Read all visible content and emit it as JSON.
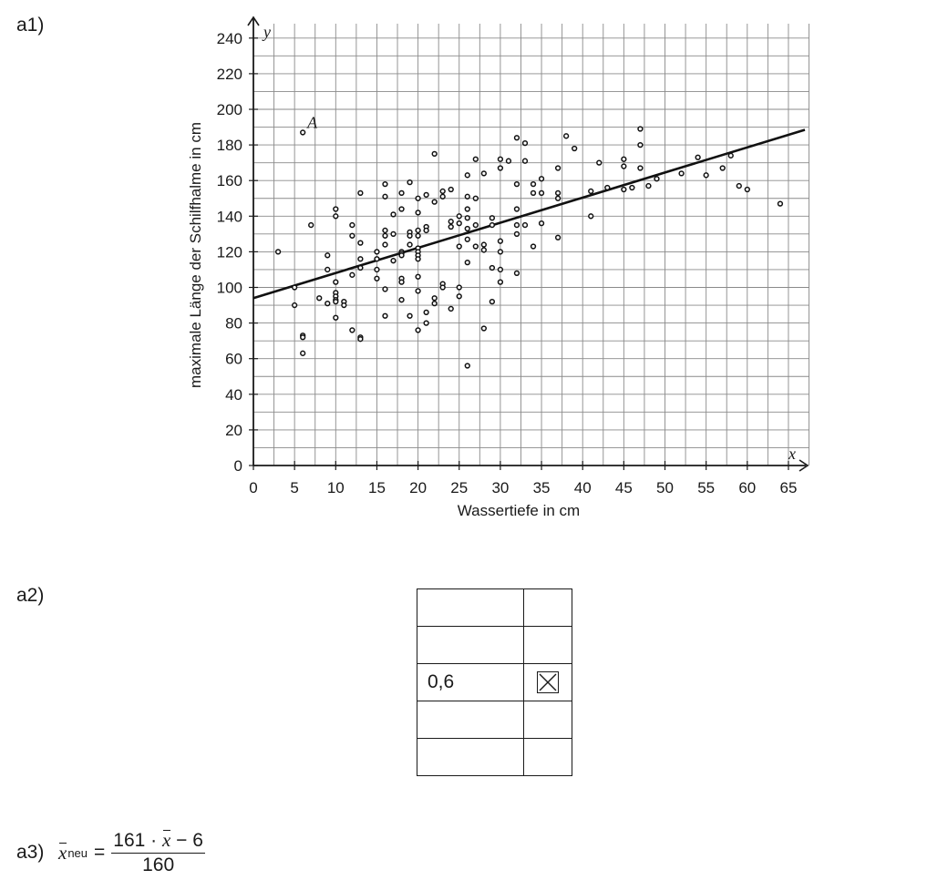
{
  "parts": {
    "a1": "a1)",
    "a2": "a2)",
    "a3": "a3)"
  },
  "chart_data": {
    "type": "scatter",
    "xlabel": "Wassertiefe in cm",
    "ylabel": "maximale Länge der Schilfhalme in cm",
    "x_var": "x",
    "y_var": "y",
    "xlim": [
      0,
      67
    ],
    "ylim": [
      0,
      245
    ],
    "x_ticks": [
      0,
      5,
      10,
      15,
      20,
      25,
      30,
      35,
      40,
      45,
      50,
      55,
      60,
      65
    ],
    "y_ticks": [
      0,
      20,
      40,
      60,
      80,
      100,
      120,
      140,
      160,
      180,
      200,
      220,
      240
    ],
    "x_tick_labels": [
      "0",
      "5",
      "10",
      "15",
      "20",
      "25",
      "30",
      "35",
      "40",
      "45",
      "50",
      "55",
      "60",
      "65"
    ],
    "y_tick_labels": [
      "0",
      "20",
      "40",
      "60",
      "80",
      "100",
      "120",
      "140",
      "160",
      "180",
      "200",
      "220",
      "240"
    ],
    "grid": true,
    "regression_line": {
      "x": [
        0,
        67
      ],
      "y": [
        94,
        188.5
      ]
    },
    "annotation": {
      "text": "A",
      "x": 6,
      "y": 187
    },
    "points": [
      [
        3,
        120
      ],
      [
        5,
        100
      ],
      [
        5,
        90
      ],
      [
        6,
        187
      ],
      [
        6,
        73
      ],
      [
        6,
        72
      ],
      [
        6,
        63
      ],
      [
        7,
        135
      ],
      [
        8,
        94
      ],
      [
        9,
        91
      ],
      [
        9,
        110
      ],
      [
        9,
        118
      ],
      [
        10,
        144
      ],
      [
        10,
        140
      ],
      [
        10,
        103
      ],
      [
        10,
        97
      ],
      [
        10,
        95
      ],
      [
        10,
        93
      ],
      [
        10,
        92
      ],
      [
        10,
        83
      ],
      [
        11,
        92
      ],
      [
        11,
        90
      ],
      [
        12,
        135
      ],
      [
        12,
        129
      ],
      [
        12,
        107
      ],
      [
        12,
        76
      ],
      [
        13,
        153
      ],
      [
        13,
        125
      ],
      [
        13,
        116
      ],
      [
        13,
        111
      ],
      [
        13,
        72
      ],
      [
        13,
        71
      ],
      [
        15,
        120
      ],
      [
        15,
        116
      ],
      [
        15,
        110
      ],
      [
        15,
        105
      ],
      [
        16,
        158
      ],
      [
        16,
        151
      ],
      [
        16,
        132
      ],
      [
        16,
        129
      ],
      [
        16,
        124
      ],
      [
        16,
        99
      ],
      [
        16,
        84
      ],
      [
        17,
        141
      ],
      [
        17,
        130
      ],
      [
        17,
        115
      ],
      [
        18,
        153
      ],
      [
        18,
        144
      ],
      [
        18,
        120
      ],
      [
        18,
        119
      ],
      [
        18,
        118
      ],
      [
        18,
        105
      ],
      [
        18,
        103
      ],
      [
        18,
        93
      ],
      [
        19,
        159
      ],
      [
        19,
        131
      ],
      [
        19,
        129
      ],
      [
        19,
        124
      ],
      [
        19,
        84
      ],
      [
        20,
        150
      ],
      [
        20,
        142
      ],
      [
        20,
        132
      ],
      [
        20,
        129
      ],
      [
        20,
        122
      ],
      [
        20,
        120
      ],
      [
        20,
        118
      ],
      [
        20,
        116
      ],
      [
        20,
        106
      ],
      [
        20,
        98
      ],
      [
        20,
        76
      ],
      [
        21,
        152
      ],
      [
        21,
        134
      ],
      [
        21,
        132
      ],
      [
        21,
        86
      ],
      [
        21,
        80
      ],
      [
        22,
        175
      ],
      [
        22,
        148
      ],
      [
        22,
        94
      ],
      [
        22,
        91
      ],
      [
        23,
        154
      ],
      [
        23,
        151
      ],
      [
        23,
        102
      ],
      [
        23,
        100
      ],
      [
        24,
        155
      ],
      [
        24,
        137
      ],
      [
        24,
        134
      ],
      [
        24,
        88
      ],
      [
        25,
        140
      ],
      [
        25,
        136
      ],
      [
        25,
        123
      ],
      [
        25,
        100
      ],
      [
        25,
        95
      ],
      [
        26,
        163
      ],
      [
        26,
        151
      ],
      [
        26,
        144
      ],
      [
        26,
        139
      ],
      [
        26,
        133
      ],
      [
        26,
        127
      ],
      [
        26,
        114
      ],
      [
        26,
        56
      ],
      [
        27,
        172
      ],
      [
        27,
        150
      ],
      [
        27,
        135
      ],
      [
        27,
        123
      ],
      [
        28,
        164
      ],
      [
        28,
        124
      ],
      [
        28,
        121
      ],
      [
        28,
        77
      ],
      [
        29,
        139
      ],
      [
        29,
        135
      ],
      [
        29,
        111
      ],
      [
        29,
        92
      ],
      [
        30,
        172
      ],
      [
        30,
        167
      ],
      [
        30,
        126
      ],
      [
        30,
        120
      ],
      [
        30,
        110
      ],
      [
        30,
        103
      ],
      [
        31,
        171
      ],
      [
        32,
        184
      ],
      [
        32,
        158
      ],
      [
        32,
        144
      ],
      [
        32,
        135
      ],
      [
        32,
        130
      ],
      [
        32,
        108
      ],
      [
        33,
        181
      ],
      [
        33,
        171
      ],
      [
        33,
        135
      ],
      [
        34,
        158
      ],
      [
        34,
        153
      ],
      [
        34,
        123
      ],
      [
        35,
        161
      ],
      [
        35,
        153
      ],
      [
        35,
        136
      ],
      [
        37,
        167
      ],
      [
        37,
        153
      ],
      [
        37,
        150
      ],
      [
        37,
        128
      ],
      [
        38,
        185
      ],
      [
        39,
        178
      ],
      [
        41,
        154
      ],
      [
        41,
        140
      ],
      [
        42,
        170
      ],
      [
        43,
        156
      ],
      [
        45,
        172
      ],
      [
        45,
        168
      ],
      [
        45,
        155
      ],
      [
        46,
        156
      ],
      [
        47,
        189
      ],
      [
        47,
        180
      ],
      [
        47,
        167
      ],
      [
        48,
        157
      ],
      [
        49,
        161
      ],
      [
        52,
        164
      ],
      [
        54,
        173
      ],
      [
        55,
        163
      ],
      [
        57,
        167
      ],
      [
        58,
        174
      ],
      [
        59,
        157
      ],
      [
        60,
        155
      ],
      [
        64,
        147
      ]
    ]
  },
  "table": {
    "rows": [
      {
        "text": "",
        "checked": false
      },
      {
        "text": "",
        "checked": false
      },
      {
        "text": "0,6",
        "checked": true
      },
      {
        "text": "",
        "checked": false
      },
      {
        "text": "",
        "checked": false
      }
    ]
  },
  "formula": {
    "var": "x",
    "subscript": "neu",
    "equals": "=",
    "num_prefix": "161 · ",
    "num_var": "x",
    "num_suffix": " − 6",
    "denominator": "160"
  }
}
